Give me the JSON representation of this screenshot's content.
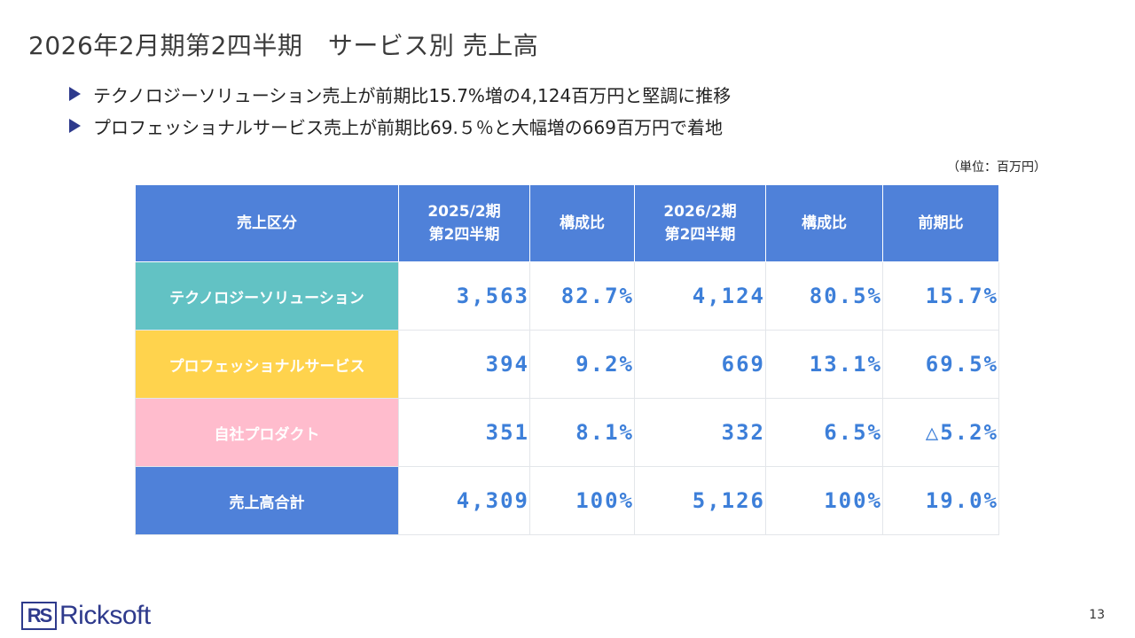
{
  "title": "2026年2月期第2四半期　サービス別 売上高",
  "bullets": [
    "テクノロジーソリューション売上が前期比15.7%増の4,124百万円と堅調に推移",
    "プロフェッショナルサービス売上が前期比69.５％と大幅増の669百万円で着地"
  ],
  "unit": "（単位：百万円）",
  "table": {
    "headers": [
      [
        "売上区分"
      ],
      [
        "2025/2期",
        "第2四半期"
      ],
      [
        "構成比"
      ],
      [
        "2026/2期",
        "第2四半期"
      ],
      [
        "構成比"
      ],
      [
        "前期比"
      ]
    ],
    "rows": [
      {
        "category": "テクノロジーソリューション",
        "color": "#62c2c4",
        "values": [
          "3,563",
          "82.7%",
          "4,124",
          "80.5%",
          "15.7%"
        ]
      },
      {
        "category": "プロフェッショナルサービス",
        "color": "#ffd34d",
        "values": [
          "394",
          "9.2%",
          "669",
          "13.1%",
          "69.5%"
        ]
      },
      {
        "category": "自社プロダクト",
        "color": "#ffbccd",
        "values": [
          "351",
          "8.1%",
          "332",
          "6.5%",
          "△5.2%"
        ]
      },
      {
        "category": "売上高合計",
        "color": "#4f81d9",
        "values": [
          "4,309",
          "100%",
          "5,126",
          "100%",
          "19.0%"
        ]
      }
    ]
  },
  "logo": {
    "mark": "RS",
    "name": "Ricksoft"
  },
  "page_number": "13"
}
